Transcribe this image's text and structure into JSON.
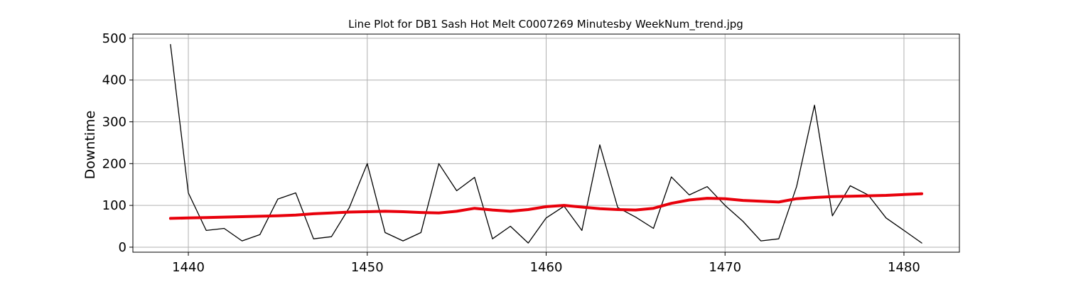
{
  "chart_data": {
    "type": "line",
    "title": "Line Plot for DB1 Sash Hot Melt C0007269 Minutesby WeekNum_trend.jpg",
    "xlabel": "",
    "ylabel": "Downtime",
    "xlim": [
      1436.9,
      1483.1
    ],
    "ylim": [
      -12,
      510
    ],
    "x_ticks": [
      1440,
      1450,
      1460,
      1470,
      1480
    ],
    "y_ticks": [
      0,
      100,
      200,
      300,
      400,
      500
    ],
    "grid": true,
    "legend": "none",
    "x": [
      1439,
      1440,
      1441,
      1442,
      1443,
      1444,
      1445,
      1446,
      1447,
      1448,
      1449,
      1450,
      1451,
      1452,
      1453,
      1454,
      1455,
      1456,
      1457,
      1458,
      1459,
      1460,
      1461,
      1462,
      1463,
      1464,
      1465,
      1466,
      1467,
      1468,
      1469,
      1470,
      1471,
      1472,
      1473,
      1474,
      1475,
      1476,
      1477,
      1478,
      1479,
      1480,
      1481
    ],
    "series": [
      {
        "color": "#000000",
        "values": [
          485,
          130,
          40,
          45,
          15,
          30,
          115,
          130,
          20,
          25,
          95,
          200,
          35,
          15,
          35,
          200,
          135,
          167,
          20,
          50,
          10,
          70,
          98,
          40,
          245,
          95,
          72,
          45,
          168,
          125,
          145,
          100,
          62,
          15,
          20,
          145,
          340,
          75,
          147,
          125,
          70,
          40,
          10
        ]
      },
      {
        "color": "#e8000b",
        "values": [
          69,
          70,
          71,
          72,
          73,
          74,
          75,
          77,
          80,
          82,
          84,
          85,
          86,
          85,
          83,
          82,
          86,
          93,
          89,
          86,
          90,
          97,
          100,
          96,
          92,
          90,
          89,
          93,
          105,
          113,
          117,
          116,
          112,
          110,
          108,
          116,
          119,
          121,
          122,
          123,
          124,
          126,
          128
        ]
      }
    ]
  }
}
